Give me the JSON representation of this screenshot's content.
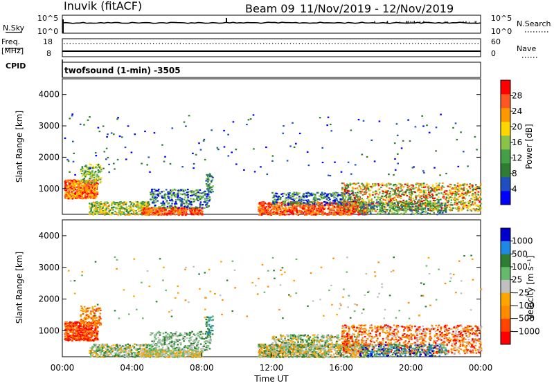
{
  "header": {
    "station": "Inuvik (fitACF)",
    "beam": "Beam 09",
    "date_range": "11/Nov/2019 - 12/Nov/2019"
  },
  "strip_top": {
    "left_label": "N.Sky",
    "left_tick_top": "10^5",
    "left_tick_bottom": "10^0",
    "right_label": "N.Search",
    "right_tick_top": "10^5",
    "right_tick_bottom": "10^0"
  },
  "strip_freq": {
    "left_label_1": "Freq.",
    "left_label_2": "[MHz]",
    "left_tick_top": "18",
    "left_tick_bottom": "8",
    "cpid_label": "CPID",
    "right_label": "Nave",
    "right_tick_top": "60",
    "right_tick_bottom": "0"
  },
  "mode_text": "twofsound (1-min) -3505",
  "colors": {
    "power": [
      "#0000ff",
      "#1f4fbf",
      "#2e7d32",
      "#43a047",
      "#8bc34a",
      "#ffd600",
      "#ff9800",
      "#ff5722",
      "#ff0000"
    ],
    "velocity": [
      "#ff0000",
      "#ff4500",
      "#ff8c00",
      "#ffa500",
      "#c0c0c0",
      "#66bb6a",
      "#2e7d32",
      "#1e88e5",
      "#0000cd"
    ]
  },
  "chart_data": [
    {
      "type": "heatmap",
      "title": "",
      "ylabel": "Slant Range [km]",
      "ylim": [
        180,
        4500
      ],
      "y_ticks": [
        1000,
        2000,
        3000,
        4000
      ],
      "xlim": [
        0,
        24
      ],
      "colorbar_label": "Power [dB]",
      "colorbar_ticks": [
        "4",
        "8",
        "12",
        "16",
        "20",
        "24",
        "28"
      ],
      "colorbar_range": [
        0,
        30
      ]
    },
    {
      "type": "heatmap",
      "title": "",
      "ylabel": "Slant Range [km]",
      "ylim": [
        180,
        4500
      ],
      "y_ticks": [
        1000,
        2000,
        3000,
        4000
      ],
      "xlim": [
        0,
        24
      ],
      "colorbar_label": "Velocity [m s⁻¹]",
      "colorbar_ticks": [
        "1000",
        "500",
        "100",
        "25",
        "−25",
        "−100",
        "−500",
        "−1000"
      ]
    }
  ],
  "x_axis": {
    "label": "Time UT",
    "ticks": [
      "00:00",
      "04:00",
      "08:00",
      "12:00",
      "16:00",
      "20:00",
      "00:00"
    ]
  }
}
